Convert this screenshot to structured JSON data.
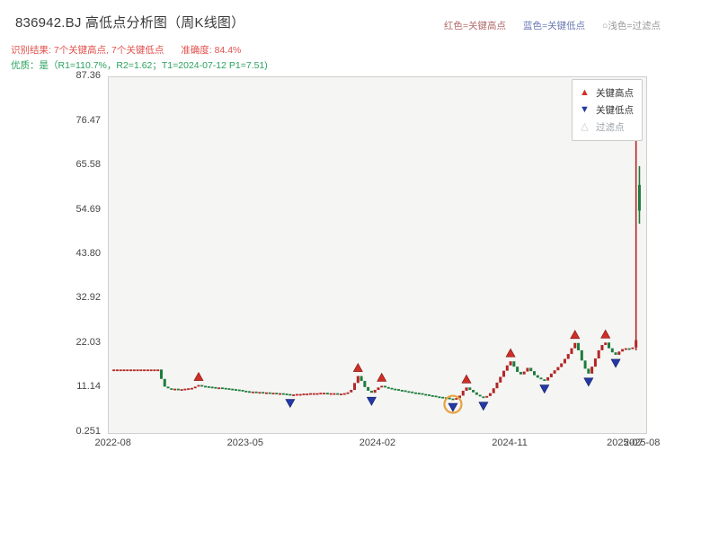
{
  "header": {
    "title": "836942.BJ 高低点分析图（周K线图）",
    "legend_note": {
      "high": "红色=关键高点",
      "low": "蓝色=关键低点",
      "filter": "○浅色=过滤点"
    },
    "result": {
      "recognition": "识别结果: 7个关键高点, 7个关键低点",
      "accuracy": "准确度: 84.4%"
    },
    "quality_line": "优质：是（R1=110.7%，R2=1.62；T1=2024-07-12 P1=7.51)"
  },
  "chart_data": {
    "type": "candlestick",
    "symbol": "836942.BJ",
    "frequency": "weekly",
    "title": "836942.BJ 高低点分析图（周K线图）",
    "ylim": [
      0.251,
      87.36
    ],
    "x_range": [
      "2022-08",
      "2025-08"
    ],
    "grid": false,
    "y_ticks": [
      {
        "v": 87.36,
        "label": "87.36"
      },
      {
        "v": 76.47,
        "label": "76.47"
      },
      {
        "v": 65.58,
        "label": "65.58"
      },
      {
        "v": 54.69,
        "label": "54.69"
      },
      {
        "v": 43.8,
        "label": "43.80"
      },
      {
        "v": 32.92,
        "label": "32.92"
      },
      {
        "v": 22.03,
        "label": "22.03"
      },
      {
        "v": 11.14,
        "label": "11.14"
      },
      {
        "v": 0.251,
        "label": "0.251"
      }
    ],
    "x_ticks": [
      {
        "i": 0,
        "label": "2022-08"
      },
      {
        "i": 39,
        "label": "2023-05"
      },
      {
        "i": 78,
        "label": "2024-02"
      },
      {
        "i": 117,
        "label": "2024-11"
      },
      {
        "i": 151,
        "label": "2025-07"
      },
      {
        "i": 156,
        "label": "2025-08"
      }
    ],
    "series": [
      15.8,
      15.8,
      15.8,
      15.8,
      15.8,
      15.8,
      15.8,
      15.8,
      15.8,
      15.8,
      15.8,
      15.8,
      15.8,
      15.8,
      13.5,
      11.6,
      11.2,
      11.0,
      11.1,
      10.9,
      11.0,
      11.1,
      11.2,
      11.3,
      11.6,
      12.0,
      11.8,
      11.7,
      11.6,
      11.5,
      11.4,
      11.4,
      11.3,
      11.2,
      11.1,
      11.0,
      10.9,
      10.8,
      10.6,
      10.5,
      10.4,
      10.4,
      10.3,
      10.3,
      10.2,
      10.2,
      10.1,
      10.1,
      10.0,
      10.0,
      9.9,
      9.8,
      9.6,
      9.7,
      9.8,
      9.8,
      9.9,
      9.9,
      10.0,
      10.0,
      10.0,
      10.1,
      10.1,
      10.0,
      10.0,
      10.0,
      9.9,
      9.9,
      10.0,
      10.2,
      10.8,
      12.5,
      14.2,
      13.0,
      11.5,
      10.6,
      10.1,
      10.8,
      11.4,
      11.8,
      11.5,
      11.3,
      11.1,
      11.0,
      10.8,
      10.7,
      10.5,
      10.4,
      10.2,
      10.1,
      10.0,
      9.8,
      9.7,
      9.5,
      9.4,
      9.2,
      9.1,
      9.0,
      8.9,
      8.7,
      8.6,
      8.8,
      9.4,
      10.6,
      11.4,
      10.8,
      10.2,
      9.6,
      9.2,
      8.9,
      9.3,
      10.0,
      11.2,
      12.6,
      14.0,
      15.5,
      16.8,
      17.8,
      16.5,
      15.2,
      14.6,
      15.3,
      16.2,
      15.4,
      14.4,
      13.8,
      13.4,
      13.1,
      13.9,
      14.8,
      15.6,
      16.4,
      17.3,
      18.4,
      19.6,
      21.0,
      22.3,
      20.5,
      18.0,
      16.0,
      14.8,
      16.5,
      18.5,
      20.5,
      21.8,
      22.4,
      21.0,
      20.0,
      19.4,
      20.2,
      20.8,
      21.0,
      20.8,
      21.2,
      {
        "o": 21.2,
        "c": 23.0,
        "h": 81.0,
        "l": 20.5
      },
      {
        "o": 61.0,
        "c": 54.7,
        "h": 65.6,
        "l": 51.5
      }
    ],
    "markers": {
      "key_highs": [
        {
          "i": 25,
          "price": 12.0
        },
        {
          "i": 72,
          "price": 14.2
        },
        {
          "i": 79,
          "price": 11.8
        },
        {
          "i": 104,
          "price": 11.4
        },
        {
          "i": 117,
          "price": 17.8
        },
        {
          "i": 136,
          "price": 22.3
        },
        {
          "i": 145,
          "price": 22.4
        }
      ],
      "key_lows": [
        {
          "i": 52,
          "price": 9.6
        },
        {
          "i": 76,
          "price": 10.1
        },
        {
          "i": 100,
          "price": 8.6
        },
        {
          "i": 109,
          "price": 8.9
        },
        {
          "i": 127,
          "price": 13.1
        },
        {
          "i": 140,
          "price": 14.8
        },
        {
          "i": 148,
          "price": 19.4
        }
      ]
    },
    "highlight_circle": {
      "i": 100,
      "price": 8.6,
      "color": "#e8a23c"
    },
    "legend": [
      {
        "label": "关键高点",
        "symbol": "triangle-up",
        "color": "#cf2f25",
        "text_color": "#333333"
      },
      {
        "label": "关键低点",
        "symbol": "triangle-down",
        "color": "#2438a8",
        "text_color": "#333333"
      },
      {
        "label": "过滤点",
        "symbol": "triangle-up-open",
        "color": "#c2c8d2",
        "text_color": "#9aa0a6"
      }
    ],
    "colors": {
      "up": "#b22626",
      "down": "#1e7d3c"
    }
  }
}
